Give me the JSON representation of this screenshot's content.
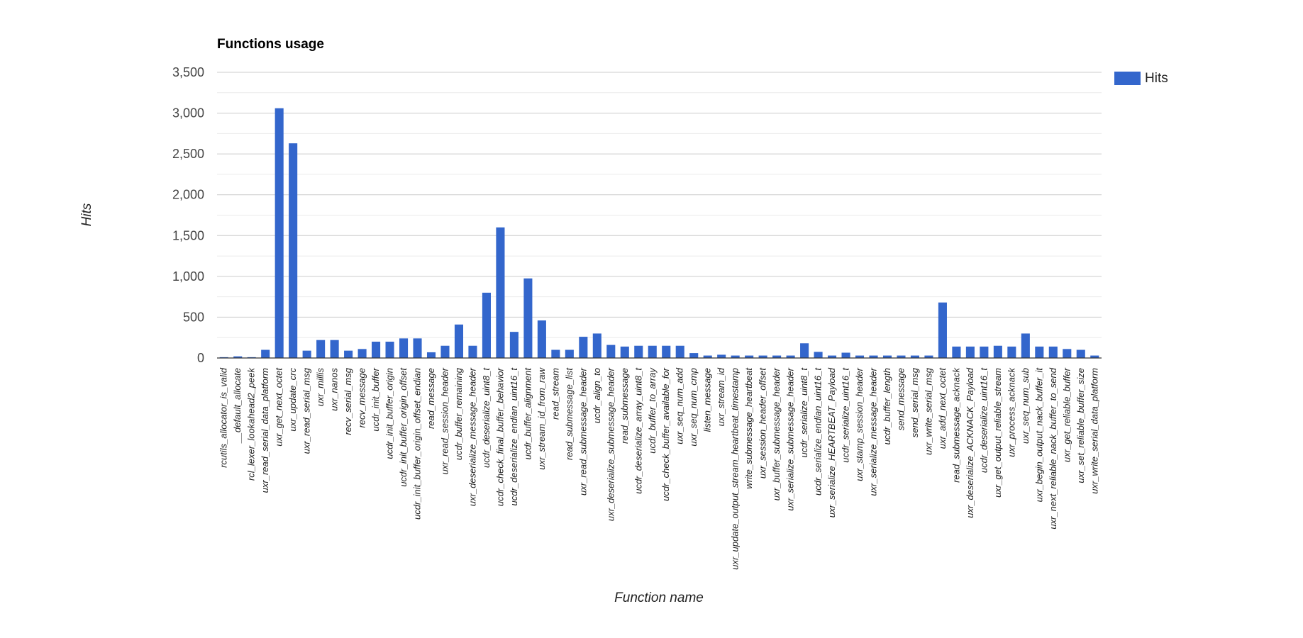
{
  "chart_data": {
    "type": "bar",
    "title": "Functions usage",
    "xlabel": "Function name",
    "ylabel": "Hits",
    "ylim": [
      0,
      3500
    ],
    "yticks": [
      0,
      500,
      1000,
      1500,
      2000,
      2500,
      3000,
      3500
    ],
    "ytick_labels": [
      "0",
      "500",
      "1,000",
      "1,500",
      "2,000",
      "2,500",
      "3,000",
      "3,500"
    ],
    "grid": true,
    "legend": "top-right",
    "color": "#3366cc",
    "categories": [
      "rcutils_allocator_is_valid",
      "__default_allocate",
      "rcl_lexer_lookahead2_peek",
      "uxr_read_serial_data_platform",
      "uxr_get_next_octet",
      "uxr_update_crc",
      "uxr_read_serial_msg",
      "uxr_millis",
      "uxr_nanos",
      "recv_serial_msg",
      "recv_message",
      "ucdr_init_buffer",
      "ucdr_init_buffer_origin",
      "ucdr_init_buffer_origin_offset",
      "ucdr_init_buffer_origin_offset_endian",
      "read_message",
      "uxr_read_session_header",
      "ucdr_buffer_remaining",
      "uxr_deserialize_message_header",
      "ucdr_deserialize_uint8_t",
      "ucdr_check_final_buffer_behavior",
      "ucdr_deserialize_endian_uint16_t",
      "ucdr_buffer_alignment",
      "uxr_stream_id_from_raw",
      "read_stream",
      "read_submessage_list",
      "uxr_read_submessage_header",
      "ucdr_align_to",
      "uxr_deserialize_submessage_header",
      "read_submessage",
      "ucdr_deserialize_array_uint8_t",
      "ucdr_buffer_to_array",
      "ucdr_check_buffer_available_for",
      "uxr_seq_num_add",
      "uxr_seq_num_cmp",
      "listen_message",
      "uxr_stream_id",
      "uxr_update_output_stream_heartbeat_timestamp",
      "write_submessage_heartbeat",
      "uxr_session_header_offset",
      "uxr_buffer_submessage_header",
      "uxr_serialize_submessage_header",
      "ucdr_serialize_uint8_t",
      "ucdr_serialize_endian_uint16_t",
      "uxr_serialize_HEARTBEAT_Payload",
      "ucdr_serialize_uint16_t",
      "uxr_stamp_session_header",
      "uxr_serialize_message_header",
      "ucdr_buffer_length",
      "send_message",
      "send_serial_msg",
      "uxr_write_serial_msg",
      "uxr_add_next_octet",
      "read_submessage_acknack",
      "uxr_deserialize_ACKNACK_Payload",
      "ucdr_deserialize_uint16_t",
      "uxr_get_output_reliable_stream",
      "uxr_process_acknack",
      "uxr_seq_num_sub",
      "uxr_begin_output_nack_buffer_it",
      "uxr_next_reliable_nack_buffer_to_send",
      "uxr_get_reliable_buffer",
      "uxr_set_reliable_buffer_size",
      "uxr_write_serial_data_platform"
    ],
    "series": [
      {
        "name": "Hits",
        "values": [
          10,
          20,
          10,
          100,
          3060,
          2630,
          90,
          220,
          220,
          90,
          110,
          200,
          200,
          240,
          240,
          70,
          150,
          410,
          150,
          800,
          1600,
          320,
          975,
          460,
          100,
          100,
          260,
          300,
          160,
          140,
          150,
          150,
          150,
          150,
          60,
          30,
          40,
          30,
          30,
          30,
          30,
          30,
          180,
          75,
          30,
          65,
          30,
          30,
          30,
          30,
          30,
          30,
          680,
          140,
          140,
          140,
          150,
          140,
          300,
          140,
          140,
          110,
          100,
          30
        ]
      }
    ]
  }
}
